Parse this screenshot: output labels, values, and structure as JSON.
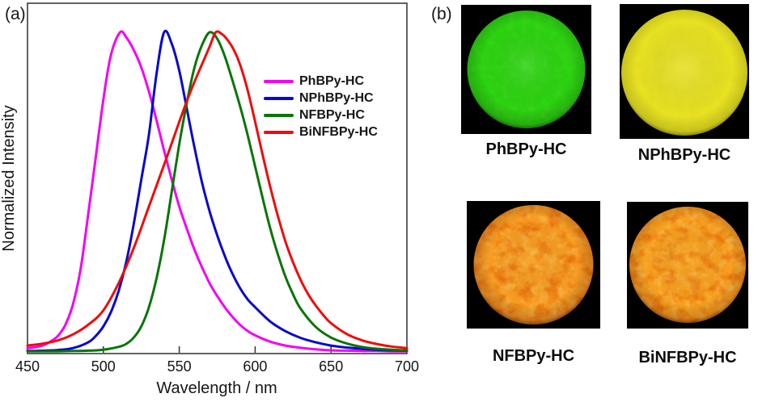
{
  "figure": {
    "panel_a_label": "(a)",
    "panel_b_label": "(b)"
  },
  "chart_data": {
    "type": "line",
    "title": "",
    "xlabel": "Wavelength / nm",
    "ylabel": "Normalized Intensity",
    "xlim": [
      450,
      700
    ],
    "ylim": [
      0,
      1.05
    ],
    "x_ticks": [
      450,
      500,
      550,
      600,
      650,
      700
    ],
    "grid": false,
    "legend_position": "inside-right-upper",
    "series": [
      {
        "name": "PhBPy-HC",
        "color": "#f400f4",
        "peak_nm": 511,
        "x": [
          450,
          455,
          460,
          465,
          470,
          475,
          480,
          485,
          490,
          495,
          500,
          505,
          511,
          515,
          520,
          525,
          530,
          535,
          540,
          545,
          550,
          555,
          560,
          565,
          570,
          575,
          580,
          585,
          590,
          595,
          600,
          610,
          620,
          630,
          640,
          650,
          660,
          670,
          680,
          690,
          700
        ],
        "y": [
          0.012,
          0.015,
          0.02,
          0.032,
          0.05,
          0.085,
          0.15,
          0.26,
          0.43,
          0.61,
          0.79,
          0.93,
          1.0,
          0.985,
          0.945,
          0.89,
          0.815,
          0.725,
          0.63,
          0.54,
          0.455,
          0.385,
          0.32,
          0.265,
          0.215,
          0.175,
          0.14,
          0.11,
          0.085,
          0.066,
          0.052,
          0.032,
          0.02,
          0.013,
          0.008,
          0.005,
          0.004,
          0.003,
          0.003,
          0.002,
          0.002
        ]
      },
      {
        "name": "NPhBPy-HC",
        "color": "#0808cc",
        "peak_nm": 540,
        "x": [
          450,
          460,
          470,
          480,
          490,
          495,
          500,
          505,
          510,
          515,
          520,
          525,
          530,
          535,
          540,
          545,
          550,
          555,
          560,
          565,
          570,
          575,
          580,
          585,
          590,
          595,
          600,
          610,
          620,
          630,
          640,
          650,
          660,
          670,
          680,
          690,
          700
        ],
        "y": [
          0.003,
          0.004,
          0.006,
          0.012,
          0.03,
          0.05,
          0.08,
          0.125,
          0.19,
          0.28,
          0.4,
          0.54,
          0.68,
          0.87,
          1.0,
          0.965,
          0.88,
          0.76,
          0.64,
          0.53,
          0.44,
          0.365,
          0.3,
          0.245,
          0.2,
          0.165,
          0.14,
          0.095,
          0.065,
          0.044,
          0.03,
          0.02,
          0.014,
          0.01,
          0.007,
          0.005,
          0.004
        ]
      },
      {
        "name": "NFBPy-HC",
        "color": "#077507",
        "peak_nm": 568,
        "x": [
          450,
          460,
          470,
          480,
          490,
          500,
          510,
          515,
          520,
          525,
          530,
          535,
          540,
          545,
          550,
          555,
          560,
          565,
          570,
          575,
          580,
          585,
          590,
          595,
          600,
          605,
          610,
          615,
          620,
          625,
          630,
          640,
          650,
          660,
          670,
          680,
          690,
          700
        ],
        "y": [
          0.002,
          0.002,
          0.002,
          0.003,
          0.004,
          0.007,
          0.016,
          0.025,
          0.045,
          0.08,
          0.14,
          0.23,
          0.35,
          0.5,
          0.65,
          0.78,
          0.89,
          0.96,
          1.0,
          0.98,
          0.925,
          0.85,
          0.77,
          0.68,
          0.58,
          0.48,
          0.385,
          0.305,
          0.235,
          0.18,
          0.135,
          0.078,
          0.045,
          0.027,
          0.016,
          0.01,
          0.007,
          0.005
        ]
      },
      {
        "name": "BiNFBPy-HC",
        "color": "#f20a0a",
        "peak_nm": 574,
        "x": [
          450,
          460,
          470,
          480,
          490,
          500,
          510,
          520,
          530,
          540,
          550,
          555,
          560,
          565,
          570,
          574,
          578,
          582,
          586,
          590,
          595,
          600,
          605,
          610,
          615,
          620,
          625,
          630,
          635,
          640,
          645,
          650,
          660,
          670,
          680,
          690,
          700
        ],
        "y": [
          0.02,
          0.026,
          0.036,
          0.055,
          0.085,
          0.13,
          0.215,
          0.325,
          0.455,
          0.585,
          0.72,
          0.785,
          0.845,
          0.9,
          0.955,
          1.0,
          0.995,
          0.975,
          0.945,
          0.9,
          0.82,
          0.72,
          0.615,
          0.515,
          0.425,
          0.345,
          0.28,
          0.225,
          0.18,
          0.145,
          0.115,
          0.09,
          0.057,
          0.037,
          0.025,
          0.017,
          0.012
        ]
      }
    ]
  },
  "photos": [
    {
      "label": "PhBPy-HC",
      "emission_color": "#2bd210",
      "background": "#000000"
    },
    {
      "label": "NPhBPy-HC",
      "emission_color": "#e8e222",
      "background": "#000000"
    },
    {
      "label": "NFBPy-HC",
      "emission_color": "#f89c22",
      "crack_color": "#c62a00",
      "background": "#000000"
    },
    {
      "label": "BiNFBPy-HC",
      "emission_color": "#f8a01f",
      "crack_color": "#c62a00",
      "background": "#000000"
    }
  ]
}
